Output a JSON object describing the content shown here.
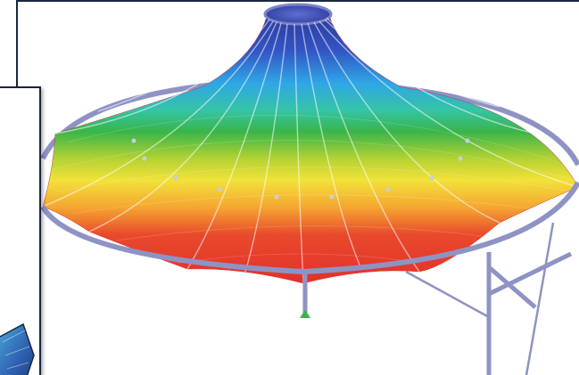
{
  "app": {
    "windows": [
      {
        "role": "background",
        "content": "membrane-roof-model"
      },
      {
        "role": "foreground",
        "content": "membrane-roof-thumbnail"
      }
    ]
  },
  "model": {
    "colors": {
      "top": "#2b3f9e",
      "upper": "#2f9de0",
      "middle": "#2db35a",
      "lower": "#f2e23a",
      "base": "#e3302a",
      "frame": "#8e93c4",
      "support": "#39b54a"
    },
    "icons": [
      "cone-roof-icon",
      "support-node-icon"
    ]
  }
}
